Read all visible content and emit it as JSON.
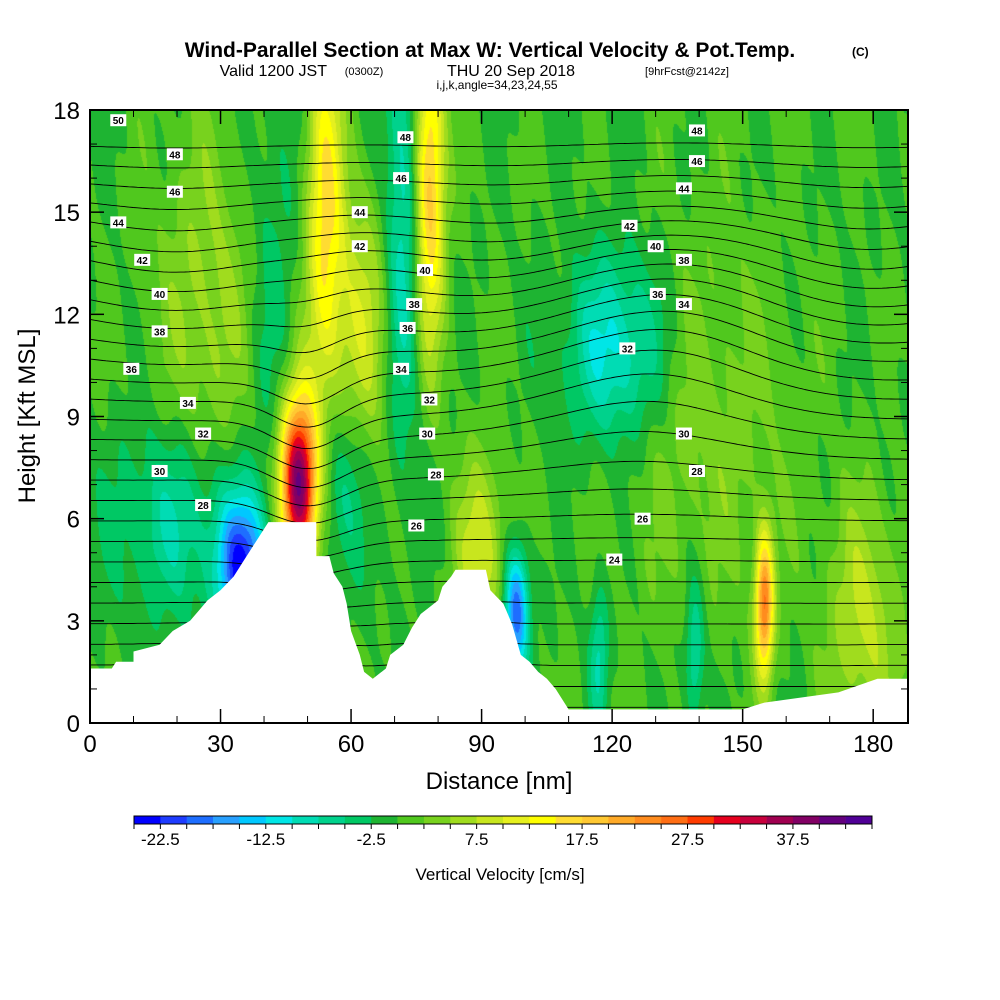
{
  "title": {
    "main": "Wind-Parallel Section at Max W: Vertical Velocity & Pot.Temp.",
    "c_mark": "(C)",
    "valid": "Valid 1200 JST",
    "utc": "(0300Z)",
    "date": "THU 20 Sep 2018",
    "fcst": "[9hrFcst@2142z]",
    "params": "i,j,k,angle=34,23,24,55"
  },
  "colors": {
    "terrain": "#ffffff",
    "contour": "#000000",
    "palette": [
      "#0000ff",
      "#1e3cff",
      "#1e6eff",
      "#28a0ff",
      "#00c8ff",
      "#00e6e6",
      "#00dcb4",
      "#00d28c",
      "#00c864",
      "#1eb432",
      "#50c81e",
      "#78d21e",
      "#a0dc1e",
      "#c8e61e",
      "#e6f01e",
      "#ffff00",
      "#ffdc32",
      "#ffc832",
      "#ffaa28",
      "#ff8c1e",
      "#ff6e14",
      "#ff3c00",
      "#e6001e",
      "#c8003c",
      "#a00050",
      "#820064",
      "#64007e",
      "#500096"
    ]
  },
  "chart_data": {
    "type": "heatmap",
    "xlabel": "Distance [nm]",
    "ylabel": "Height [Kft MSL]",
    "xlim": [
      0,
      188
    ],
    "ylim": [
      0,
      18
    ],
    "xticks": [
      0,
      30,
      60,
      90,
      120,
      150,
      180
    ],
    "yticks": [
      0,
      3,
      6,
      9,
      12,
      15,
      18
    ],
    "colorbar": {
      "title": "Vertical Velocity [cm/s]",
      "min": -25,
      "max": 45,
      "step": 2.5,
      "labels": [
        "-22.5",
        "-12.5",
        "-2.5",
        "7.5",
        "17.5",
        "27.5",
        "37.5"
      ],
      "label_values": [
        -22.5,
        -12.5,
        -2.5,
        7.5,
        17.5,
        27.5,
        37.5
      ]
    },
    "terrain": [
      [
        0,
        1.6
      ],
      [
        5,
        1.6
      ],
      [
        6,
        1.8
      ],
      [
        10,
        1.8
      ],
      [
        10,
        2.1
      ],
      [
        16,
        2.3
      ],
      [
        19,
        2.7
      ],
      [
        23,
        3.0
      ],
      [
        25,
        3.3
      ],
      [
        27,
        3.6
      ],
      [
        30,
        3.9
      ],
      [
        33,
        4.3
      ],
      [
        35,
        4.7
      ],
      [
        37,
        5.1
      ],
      [
        39,
        5.5
      ],
      [
        41,
        5.9
      ],
      [
        49,
        5.9
      ],
      [
        52,
        5.9
      ],
      [
        52,
        4.9
      ],
      [
        55,
        4.9
      ],
      [
        56,
        4.4
      ],
      [
        58,
        4.0
      ],
      [
        59,
        3.5
      ],
      [
        60,
        2.7
      ],
      [
        62,
        2.0
      ],
      [
        63,
        1.5
      ],
      [
        65,
        1.3
      ],
      [
        68,
        1.6
      ],
      [
        69,
        2.0
      ],
      [
        72,
        2.3
      ],
      [
        74,
        2.8
      ],
      [
        76,
        3.2
      ],
      [
        78,
        3.4
      ],
      [
        80,
        3.6
      ],
      [
        81,
        4.0
      ],
      [
        83,
        4.3
      ],
      [
        84,
        4.5
      ],
      [
        91,
        4.5
      ],
      [
        92,
        3.9
      ],
      [
        95,
        3.5
      ],
      [
        97,
        2.9
      ],
      [
        99,
        2.0
      ],
      [
        101,
        1.8
      ],
      [
        103,
        1.5
      ],
      [
        105,
        1.3
      ],
      [
        107,
        1.0
      ],
      [
        110,
        0.4
      ],
      [
        150,
        0.4
      ],
      [
        155,
        0.6
      ],
      [
        172,
        0.9
      ],
      [
        181,
        1.3
      ],
      [
        188,
        1.3
      ]
    ],
    "updrafts": [
      {
        "x": 54,
        "y": 15,
        "sx": 3,
        "sy": 4,
        "w": 15
      },
      {
        "x": 78,
        "y": 16,
        "sx": 2.5,
        "sy": 3.5,
        "w": 20
      },
      {
        "x": 48,
        "y": 7,
        "sx": 3,
        "sy": 1.8,
        "w": 42
      },
      {
        "x": 62,
        "y": 11.5,
        "sx": 5,
        "sy": 3,
        "w": 9
      },
      {
        "x": 155,
        "y": 3.5,
        "sx": 1.5,
        "sy": 1.5,
        "w": 25
      },
      {
        "x": 140,
        "y": 9,
        "sx": 15,
        "sy": 4,
        "w": 4
      },
      {
        "x": 178,
        "y": 3,
        "sx": 6,
        "sy": 2.5,
        "w": 8
      },
      {
        "x": 90,
        "y": 5,
        "sx": 4,
        "sy": 2,
        "w": 10
      },
      {
        "x": 27,
        "y": 12,
        "sx": 8,
        "sy": 4,
        "w": 6
      }
    ],
    "downdrafts": [
      {
        "x": 35,
        "y": 4.5,
        "sx": 4,
        "sy": 1.5,
        "w": 22
      },
      {
        "x": 98,
        "y": 3.3,
        "sx": 2,
        "sy": 1.3,
        "w": 20
      },
      {
        "x": 121,
        "y": 11,
        "sx": 8,
        "sy": 2,
        "w": 12
      },
      {
        "x": 72,
        "y": 15,
        "sx": 3,
        "sy": 5,
        "w": 10
      },
      {
        "x": 58,
        "y": 7,
        "sx": 4,
        "sy": 2,
        "w": 8
      },
      {
        "x": 42,
        "y": 13,
        "sx": 4,
        "sy": 5,
        "w": 4
      },
      {
        "x": 139,
        "y": 2,
        "sx": 1.5,
        "sy": 1.5,
        "w": 9
      },
      {
        "x": 117,
        "y": 2,
        "sx": 1.5,
        "sy": 1.5,
        "w": 8
      },
      {
        "x": 20,
        "y": 6,
        "sx": 10,
        "sy": 2,
        "w": 8
      }
    ],
    "theta_contours": {
      "start": 22,
      "end": 51,
      "step": 1,
      "labeled": [
        {
          "label": "50",
          "x": 6.5,
          "y": 17.7
        },
        {
          "label": "48",
          "x": 19.5,
          "y": 16.7
        },
        {
          "label": "46",
          "x": 19.5,
          "y": 15.6
        },
        {
          "label": "44",
          "x": 6.5,
          "y": 14.7
        },
        {
          "label": "42",
          "x": 12,
          "y": 13.6
        },
        {
          "label": "40",
          "x": 16,
          "y": 12.6
        },
        {
          "label": "38",
          "x": 16,
          "y": 11.5
        },
        {
          "label": "36",
          "x": 9.5,
          "y": 10.4
        },
        {
          "label": "34",
          "x": 22.5,
          "y": 9.4
        },
        {
          "label": "32",
          "x": 26,
          "y": 8.5
        },
        {
          "label": "30",
          "x": 16,
          "y": 7.4
        },
        {
          "label": "28",
          "x": 26,
          "y": 6.4
        },
        {
          "label": "48",
          "x": 72.5,
          "y": 17.2
        },
        {
          "label": "46",
          "x": 71.5,
          "y": 16.0
        },
        {
          "label": "44",
          "x": 62,
          "y": 15.0
        },
        {
          "label": "42",
          "x": 62,
          "y": 14.0
        },
        {
          "label": "40",
          "x": 77,
          "y": 13.3
        },
        {
          "label": "38",
          "x": 74.5,
          "y": 12.3
        },
        {
          "label": "36",
          "x": 73,
          "y": 11.6
        },
        {
          "label": "34",
          "x": 71.5,
          "y": 10.4
        },
        {
          "label": "32",
          "x": 78,
          "y": 9.5
        },
        {
          "label": "30",
          "x": 77.5,
          "y": 8.5
        },
        {
          "label": "28",
          "x": 79.5,
          "y": 7.3
        },
        {
          "label": "26",
          "x": 75,
          "y": 5.8
        },
        {
          "label": "48",
          "x": 139.5,
          "y": 17.4
        },
        {
          "label": "46",
          "x": 139.5,
          "y": 16.5
        },
        {
          "label": "44",
          "x": 136.5,
          "y": 15.7
        },
        {
          "label": "42",
          "x": 124,
          "y": 14.6
        },
        {
          "label": "40",
          "x": 130,
          "y": 14.0
        },
        {
          "label": "38",
          "x": 136.5,
          "y": 13.6
        },
        {
          "label": "36",
          "x": 130.5,
          "y": 12.6
        },
        {
          "label": "34",
          "x": 136.5,
          "y": 12.3
        },
        {
          "label": "32",
          "x": 123.5,
          "y": 11.0
        },
        {
          "label": "30",
          "x": 136.5,
          "y": 8.5
        },
        {
          "label": "28",
          "x": 139.5,
          "y": 7.4
        },
        {
          "label": "26",
          "x": 127,
          "y": 6.0
        },
        {
          "label": "24",
          "x": 120.5,
          "y": 4.8
        }
      ]
    }
  }
}
